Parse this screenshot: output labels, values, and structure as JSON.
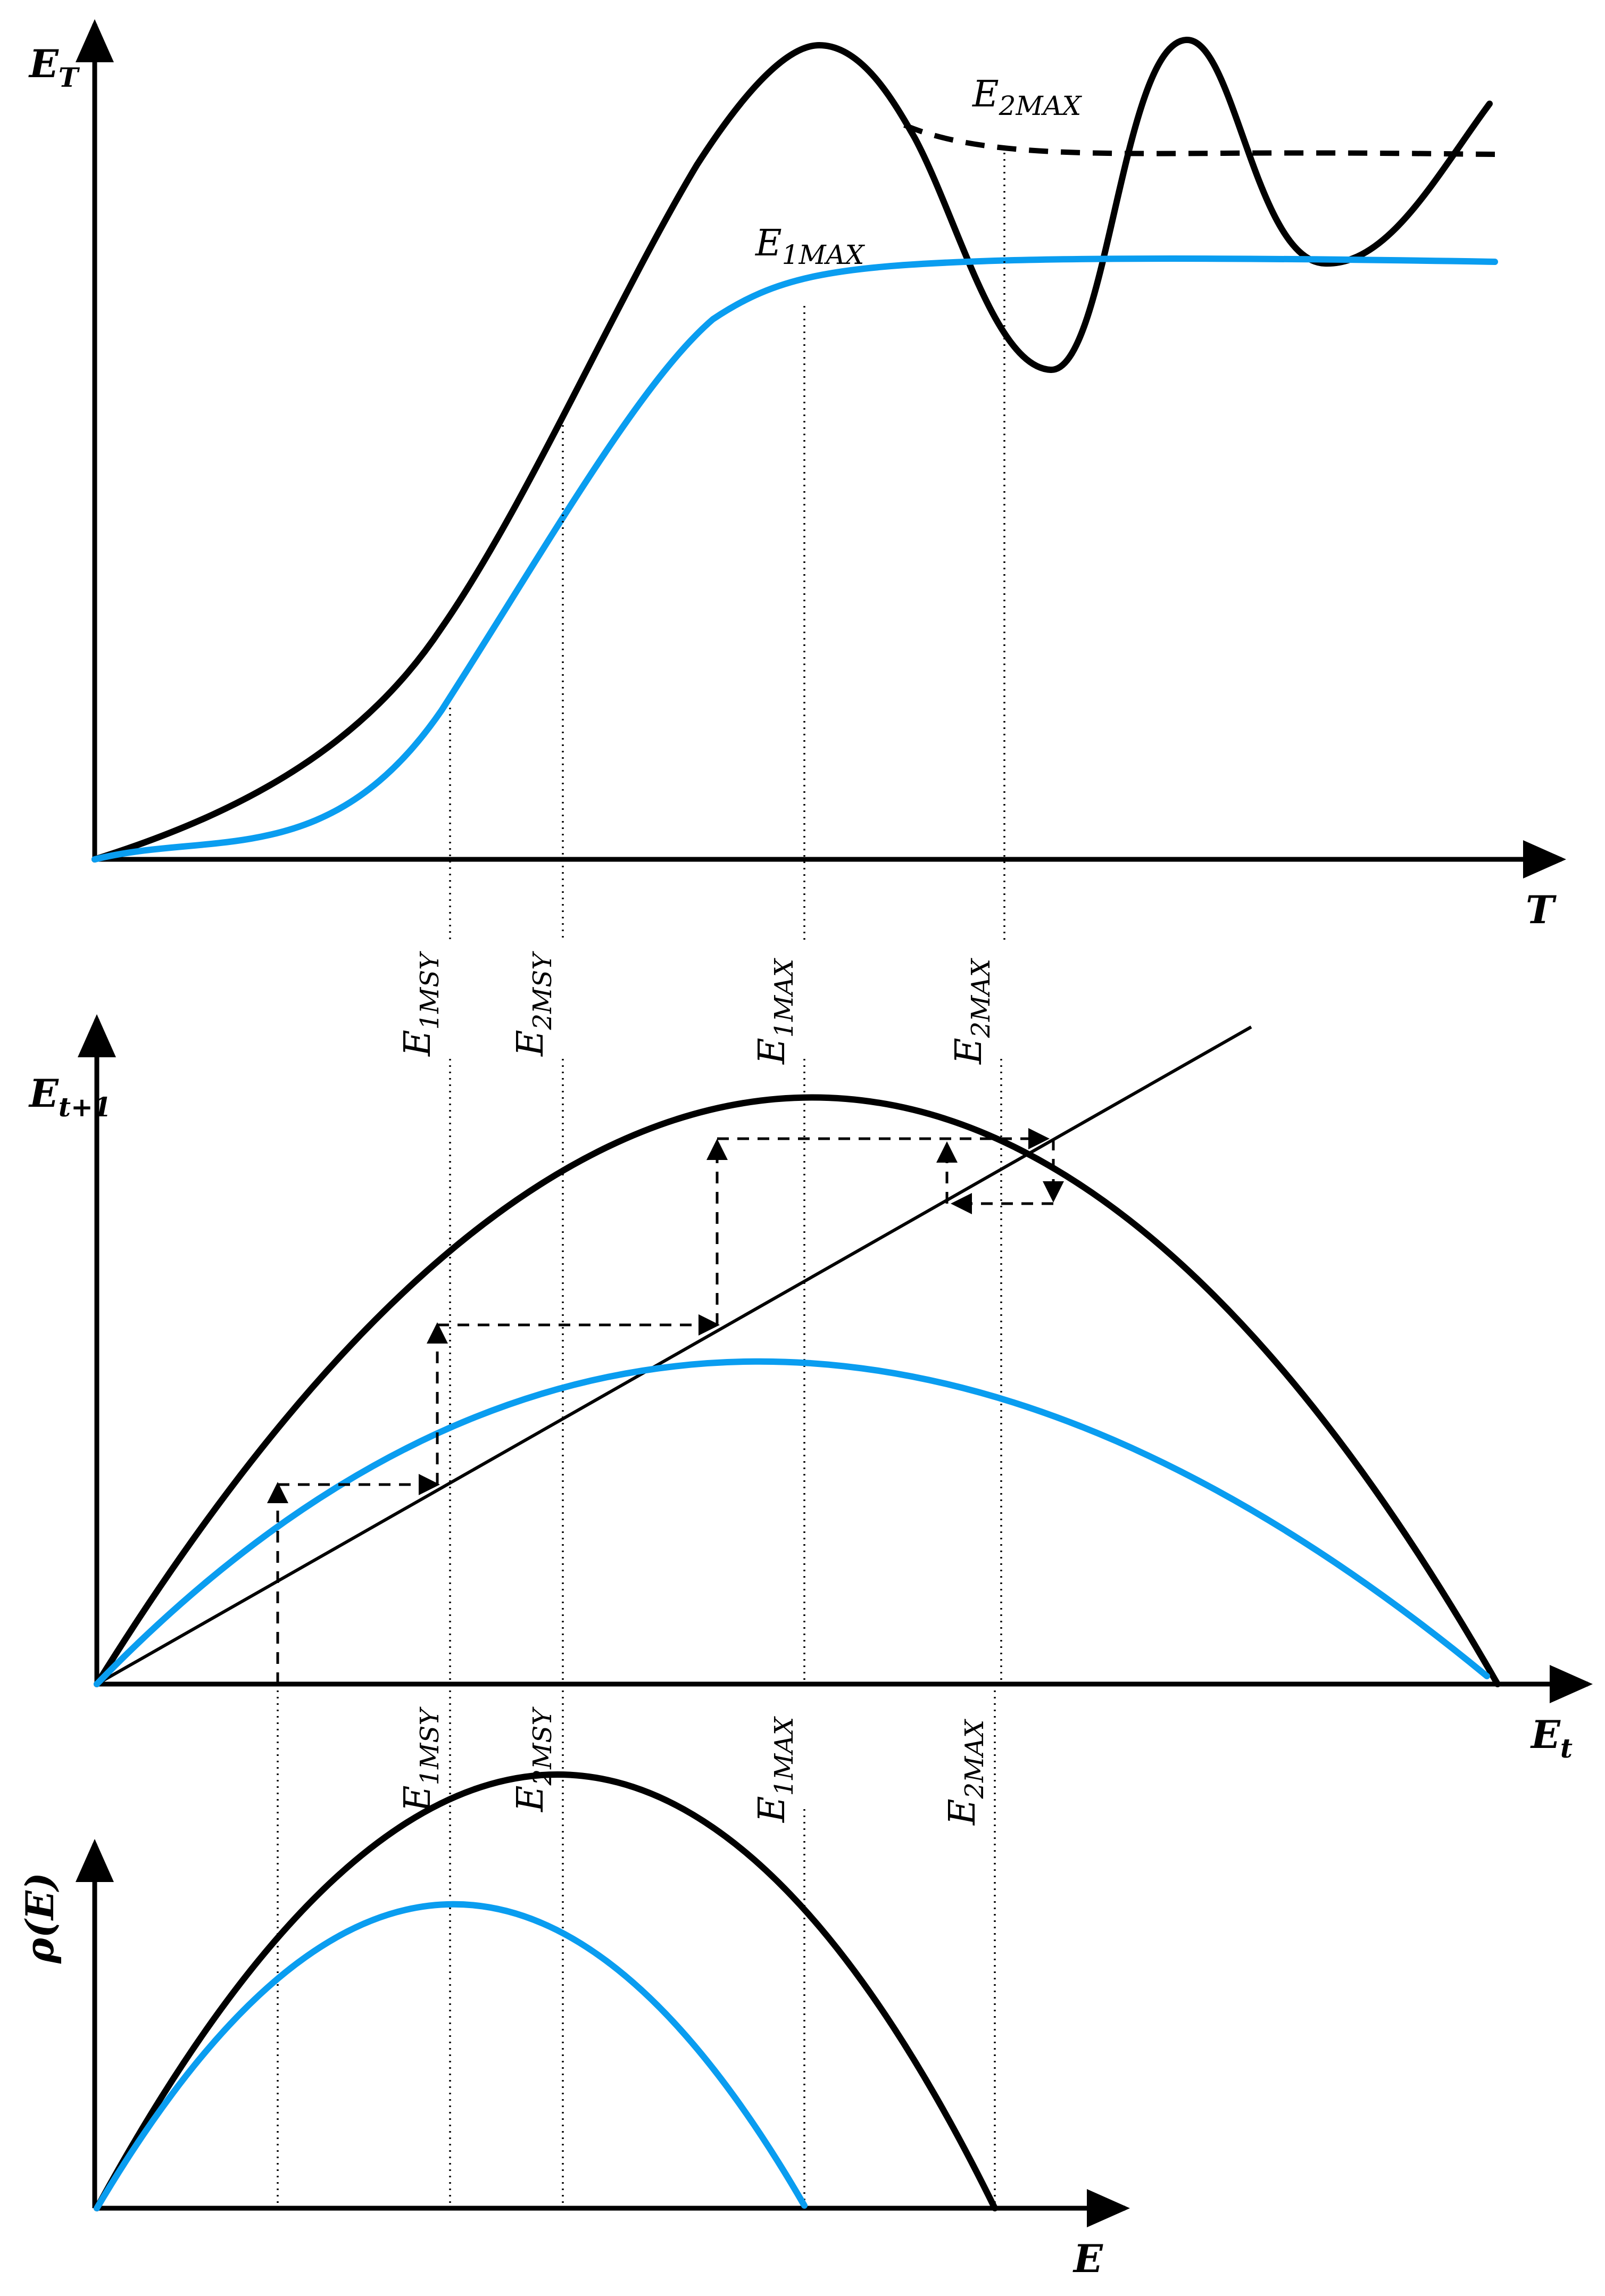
{
  "panel_top": {
    "y_axis_label": "E",
    "y_axis_sub": "T",
    "x_axis_label": "T",
    "curve_labels": [
      {
        "main": "E",
        "sub": "2MAX"
      },
      {
        "main": "E",
        "sub": "1MAX"
      }
    ]
  },
  "panel_middle": {
    "y_axis_label": "E",
    "y_axis_sub": "t+1",
    "x_axis_label": "E",
    "x_axis_sub": "t",
    "labels_above": [
      {
        "main": "E",
        "sub": "1MSY"
      },
      {
        "main": "E",
        "sub": "2MSY"
      },
      {
        "main": "E",
        "sub": "1MAX"
      },
      {
        "main": "E",
        "sub": "2MAX"
      }
    ],
    "labels_below": [
      {
        "main": "E",
        "sub": "1MSY"
      },
      {
        "main": "E",
        "sub": "2MSY"
      },
      {
        "main": "E",
        "sub": "1MAX"
      },
      {
        "main": "E",
        "sub": "2MAX"
      }
    ]
  },
  "panel_bottom": {
    "y_axis_label": "ρ(E)",
    "x_axis_label": "E"
  },
  "colors": {
    "black_series": "#000000",
    "blue_series": "#0a9df0"
  }
}
